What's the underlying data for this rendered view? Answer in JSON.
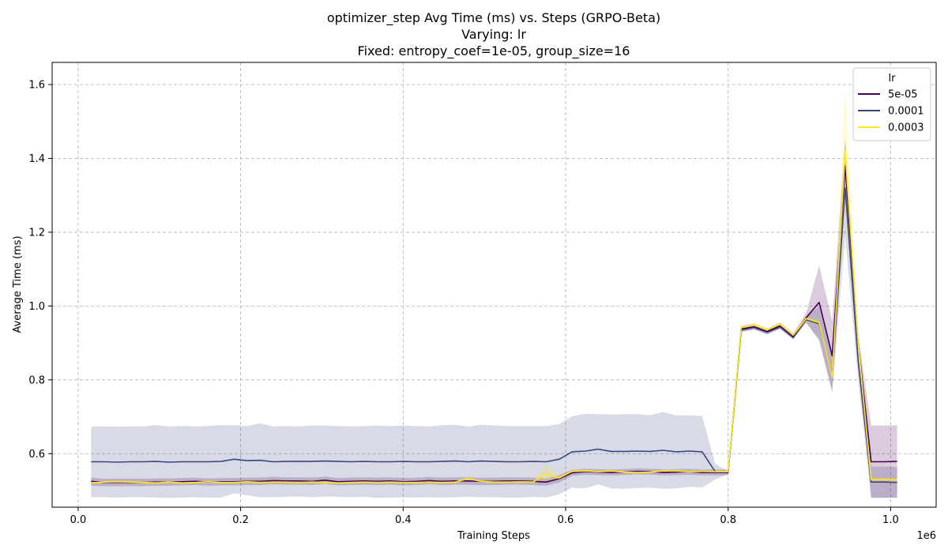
{
  "chart_data": {
    "type": "line",
    "title": [
      "optimizer_step Avg Time (ms) vs. Steps (GRPO-Beta)",
      "Varying: lr",
      "Fixed: entropy_coef=1e-05, group_size=16"
    ],
    "xlabel": "Training Steps",
    "ylabel": "Average Time (ms)",
    "x_offset_label": "1e6",
    "xlim": [
      -0.032,
      1.056
    ],
    "ylim": [
      0.455,
      1.66
    ],
    "x_ticks": [
      0.0,
      0.2,
      0.4,
      0.6,
      0.8,
      1.0
    ],
    "x_tick_labels": [
      "0.0",
      "0.2",
      "0.4",
      "0.6",
      "0.8",
      "1.0"
    ],
    "y_ticks": [
      0.6,
      0.8,
      1.0,
      1.2,
      1.4,
      1.6
    ],
    "y_tick_labels": [
      "0.6",
      "0.8",
      "1.0",
      "1.2",
      "1.4",
      "1.6"
    ],
    "grid": true,
    "legend": {
      "title": "lr",
      "placement": "top-right"
    },
    "x": [
      0.016,
      0.032,
      0.048,
      0.064,
      0.08,
      0.096,
      0.112,
      0.128,
      0.144,
      0.16,
      0.176,
      0.192,
      0.208,
      0.224,
      0.24,
      0.256,
      0.272,
      0.288,
      0.304,
      0.32,
      0.336,
      0.352,
      0.368,
      0.384,
      0.4,
      0.416,
      0.432,
      0.448,
      0.464,
      0.48,
      0.496,
      0.512,
      0.528,
      0.544,
      0.56,
      0.576,
      0.592,
      0.608,
      0.624,
      0.64,
      0.656,
      0.672,
      0.688,
      0.704,
      0.72,
      0.736,
      0.752,
      0.768,
      0.784,
      0.8,
      0.816,
      0.832,
      0.848,
      0.864,
      0.88,
      0.896,
      0.912,
      0.928,
      0.944,
      0.96,
      0.976,
      0.992,
      1.008
    ],
    "series": [
      {
        "name": "5e-05",
        "color": "#440154",
        "values": [
          0.525,
          0.522,
          0.522,
          0.522,
          0.522,
          0.523,
          0.523,
          0.524,
          0.525,
          0.523,
          0.524,
          0.524,
          0.525,
          0.525,
          0.527,
          0.526,
          0.526,
          0.525,
          0.528,
          0.524,
          0.525,
          0.526,
          0.525,
          0.526,
          0.524,
          0.525,
          0.527,
          0.525,
          0.526,
          0.526,
          0.525,
          0.525,
          0.526,
          0.526,
          0.525,
          0.523,
          0.532,
          0.548,
          0.551,
          0.55,
          0.549,
          0.55,
          0.552,
          0.551,
          0.549,
          0.55,
          0.551,
          0.549,
          0.549,
          0.549,
          0.938,
          0.944,
          0.931,
          0.947,
          0.918,
          0.968,
          1.01,
          0.865,
          1.38,
          0.9,
          0.578,
          0.578,
          0.579
        ],
        "lower": [
          0.513,
          0.512,
          0.512,
          0.512,
          0.512,
          0.513,
          0.513,
          0.514,
          0.515,
          0.513,
          0.514,
          0.514,
          0.515,
          0.515,
          0.517,
          0.516,
          0.516,
          0.515,
          0.518,
          0.514,
          0.515,
          0.516,
          0.515,
          0.516,
          0.514,
          0.515,
          0.517,
          0.515,
          0.516,
          0.516,
          0.515,
          0.515,
          0.516,
          0.516,
          0.515,
          0.513,
          0.522,
          0.54,
          0.543,
          0.542,
          0.541,
          0.542,
          0.544,
          0.543,
          0.541,
          0.542,
          0.543,
          0.541,
          0.541,
          0.541,
          0.93,
          0.936,
          0.923,
          0.939,
          0.91,
          0.955,
          0.91,
          0.77,
          1.31,
          0.88,
          0.48,
          0.48,
          0.481
        ],
        "upper": [
          0.535,
          0.532,
          0.532,
          0.532,
          0.532,
          0.533,
          0.533,
          0.534,
          0.535,
          0.533,
          0.534,
          0.534,
          0.535,
          0.535,
          0.537,
          0.536,
          0.536,
          0.535,
          0.538,
          0.534,
          0.535,
          0.536,
          0.535,
          0.536,
          0.534,
          0.535,
          0.537,
          0.535,
          0.536,
          0.536,
          0.535,
          0.535,
          0.536,
          0.536,
          0.535,
          0.533,
          0.542,
          0.556,
          0.559,
          0.558,
          0.557,
          0.558,
          0.56,
          0.559,
          0.557,
          0.558,
          0.559,
          0.557,
          0.557,
          0.557,
          0.946,
          0.952,
          0.939,
          0.955,
          0.926,
          0.981,
          1.11,
          0.96,
          1.45,
          0.92,
          0.676,
          0.676,
          0.677
        ]
      },
      {
        "name": "0.0001",
        "color": "#3b4681",
        "values": [
          0.578,
          0.578,
          0.577,
          0.578,
          0.578,
          0.579,
          0.577,
          0.578,
          0.578,
          0.578,
          0.579,
          0.585,
          0.581,
          0.582,
          0.578,
          0.579,
          0.579,
          0.579,
          0.58,
          0.579,
          0.578,
          0.579,
          0.578,
          0.578,
          0.579,
          0.578,
          0.578,
          0.579,
          0.58,
          0.578,
          0.58,
          0.579,
          0.578,
          0.578,
          0.579,
          0.578,
          0.585,
          0.605,
          0.607,
          0.612,
          0.606,
          0.606,
          0.607,
          0.606,
          0.609,
          0.605,
          0.607,
          0.605,
          0.551,
          0.549,
          0.935,
          0.942,
          0.929,
          0.943,
          0.915,
          0.963,
          0.952,
          0.81,
          1.32,
          0.85,
          0.523,
          0.523,
          0.522
        ],
        "lower": [
          0.482,
          0.482,
          0.481,
          0.482,
          0.482,
          0.481,
          0.48,
          0.481,
          0.482,
          0.481,
          0.481,
          0.493,
          0.487,
          0.482,
          0.482,
          0.483,
          0.484,
          0.482,
          0.484,
          0.483,
          0.482,
          0.483,
          0.48,
          0.481,
          0.482,
          0.481,
          0.482,
          0.481,
          0.482,
          0.483,
          0.482,
          0.482,
          0.481,
          0.481,
          0.483,
          0.481,
          0.49,
          0.508,
          0.506,
          0.517,
          0.506,
          0.505,
          0.507,
          0.508,
          0.505,
          0.506,
          0.51,
          0.508,
          0.53,
          0.545,
          0.93,
          0.936,
          0.923,
          0.937,
          0.909,
          0.955,
          0.905,
          0.765,
          1.19,
          0.8,
          0.481,
          0.481,
          0.48
        ],
        "upper": [
          0.674,
          0.674,
          0.673,
          0.674,
          0.674,
          0.677,
          0.674,
          0.675,
          0.674,
          0.675,
          0.677,
          0.677,
          0.675,
          0.682,
          0.674,
          0.675,
          0.674,
          0.676,
          0.676,
          0.675,
          0.674,
          0.675,
          0.676,
          0.675,
          0.676,
          0.675,
          0.674,
          0.677,
          0.678,
          0.673,
          0.678,
          0.676,
          0.675,
          0.675,
          0.675,
          0.675,
          0.68,
          0.702,
          0.708,
          0.707,
          0.706,
          0.707,
          0.707,
          0.704,
          0.713,
          0.704,
          0.704,
          0.702,
          0.572,
          0.553,
          0.94,
          0.948,
          0.935,
          0.949,
          0.921,
          0.971,
          0.999,
          0.855,
          1.45,
          0.9,
          0.565,
          0.565,
          0.564
        ]
      },
      {
        "name": "0.0003",
        "color": "#fde725",
        "values": [
          0.521,
          0.523,
          0.524,
          0.523,
          0.522,
          0.521,
          0.523,
          0.521,
          0.522,
          0.524,
          0.522,
          0.522,
          0.524,
          0.522,
          0.523,
          0.523,
          0.522,
          0.523,
          0.522,
          0.521,
          0.522,
          0.523,
          0.522,
          0.523,
          0.522,
          0.522,
          0.523,
          0.522,
          0.523,
          0.532,
          0.525,
          0.523,
          0.523,
          0.524,
          0.523,
          0.545,
          0.534,
          0.552,
          0.553,
          0.551,
          0.553,
          0.55,
          0.549,
          0.55,
          0.553,
          0.553,
          0.551,
          0.552,
          0.551,
          0.551,
          0.941,
          0.948,
          0.935,
          0.95,
          0.921,
          0.966,
          0.955,
          0.808,
          1.42,
          0.9,
          0.53,
          0.53,
          0.529
        ],
        "lower": [
          0.517,
          0.519,
          0.52,
          0.519,
          0.518,
          0.517,
          0.519,
          0.517,
          0.518,
          0.52,
          0.518,
          0.518,
          0.52,
          0.518,
          0.519,
          0.519,
          0.518,
          0.519,
          0.518,
          0.517,
          0.518,
          0.519,
          0.518,
          0.519,
          0.518,
          0.518,
          0.519,
          0.518,
          0.519,
          0.526,
          0.521,
          0.519,
          0.519,
          0.52,
          0.519,
          0.525,
          0.528,
          0.548,
          0.549,
          0.547,
          0.549,
          0.546,
          0.545,
          0.546,
          0.549,
          0.549,
          0.547,
          0.548,
          0.547,
          0.547,
          0.935,
          0.942,
          0.929,
          0.944,
          0.915,
          0.958,
          0.945,
          0.8,
          1.26,
          0.88,
          0.524,
          0.524,
          0.523
        ],
        "upper": [
          0.525,
          0.527,
          0.528,
          0.527,
          0.526,
          0.525,
          0.527,
          0.525,
          0.526,
          0.528,
          0.526,
          0.526,
          0.528,
          0.526,
          0.527,
          0.527,
          0.526,
          0.527,
          0.526,
          0.525,
          0.526,
          0.527,
          0.526,
          0.527,
          0.526,
          0.526,
          0.527,
          0.526,
          0.527,
          0.538,
          0.529,
          0.527,
          0.527,
          0.528,
          0.527,
          0.57,
          0.54,
          0.556,
          0.557,
          0.555,
          0.557,
          0.554,
          0.553,
          0.554,
          0.557,
          0.557,
          0.555,
          0.556,
          0.555,
          0.555,
          0.947,
          0.954,
          0.941,
          0.956,
          0.927,
          0.974,
          0.965,
          0.816,
          1.59,
          0.92,
          0.536,
          0.536,
          0.535
        ]
      }
    ]
  }
}
